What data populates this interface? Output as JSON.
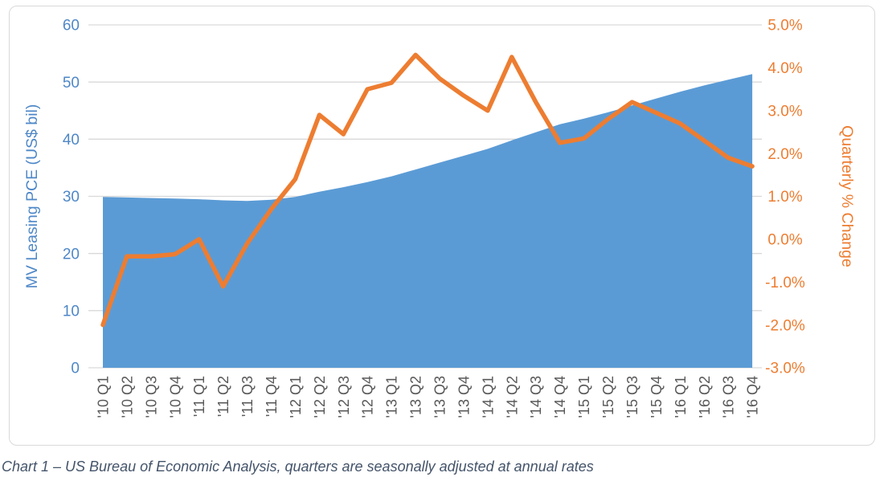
{
  "caption": "Chart 1 – US Bureau of Economic Analysis, quarters are seasonally adjusted at annual rates",
  "chart_data": {
    "type": "area",
    "subtype": "area-line-combo",
    "categories": [
      "'10 Q1",
      "'10 Q2",
      "'10 Q3",
      "'10 Q4",
      "'11 Q1",
      "'11 Q2",
      "'11 Q3",
      "'11 Q4",
      "'12 Q1",
      "'12 Q2",
      "'12 Q3",
      "'12 Q4",
      "'13 Q1",
      "'13 Q2",
      "'13 Q3",
      "'13 Q4",
      "'14 Q1",
      "'14 Q2",
      "'14 Q3",
      "'14 Q4",
      "'15 Q1",
      "'15 Q2",
      "'15 Q3",
      "'15 Q4",
      "'16 Q1",
      "'16 Q2",
      "'16 Q3",
      "'16 Q4"
    ],
    "series": [
      {
        "name": "MV Leasing PCE (US$ bil)",
        "type": "area",
        "axis": "left",
        "color": "#5B9BD5",
        "values": [
          29.9,
          29.8,
          29.7,
          29.6,
          29.5,
          29.3,
          29.2,
          29.4,
          29.9,
          30.8,
          31.6,
          32.5,
          33.5,
          34.7,
          35.9,
          37.1,
          38.3,
          39.8,
          41.2,
          42.6,
          43.6,
          44.7,
          45.9,
          47.1,
          48.3,
          49.4,
          50.4,
          51.4
        ]
      },
      {
        "name": "Quarterly % Change",
        "type": "line",
        "axis": "right",
        "color": "#ED7D31",
        "values": [
          -2.0,
          -0.4,
          -0.4,
          -0.35,
          0.0,
          -1.1,
          -0.1,
          0.7,
          1.4,
          2.9,
          2.45,
          3.5,
          3.65,
          4.3,
          3.75,
          3.35,
          3.0,
          4.25,
          3.2,
          2.25,
          2.35,
          2.8,
          3.2,
          2.95,
          2.7,
          2.3,
          1.9,
          1.7
        ]
      }
    ],
    "left_axis": {
      "title": "MV Leasing PCE (US$ bil)",
      "min": 0,
      "max": 60,
      "step": 10,
      "ticks": [
        "60",
        "50",
        "40",
        "30",
        "20",
        "10",
        "0"
      ],
      "color": "#4E87C7"
    },
    "right_axis": {
      "title": "Quarterly % Change",
      "min": -3.0,
      "max": 5.0,
      "step": 1.0,
      "ticks": [
        "5.0%",
        "4.0%",
        "3.0%",
        "2.0%",
        "1.0%",
        "0.0%",
        "-1.0%",
        "-2.0%",
        "-3.0%"
      ],
      "color": "#ED7D31"
    },
    "x_axis": {
      "label_color": "#595959",
      "label_rotation": -90
    },
    "grid": true,
    "gridline_color": "#D9D9D9",
    "legend": "none",
    "title": ""
  }
}
